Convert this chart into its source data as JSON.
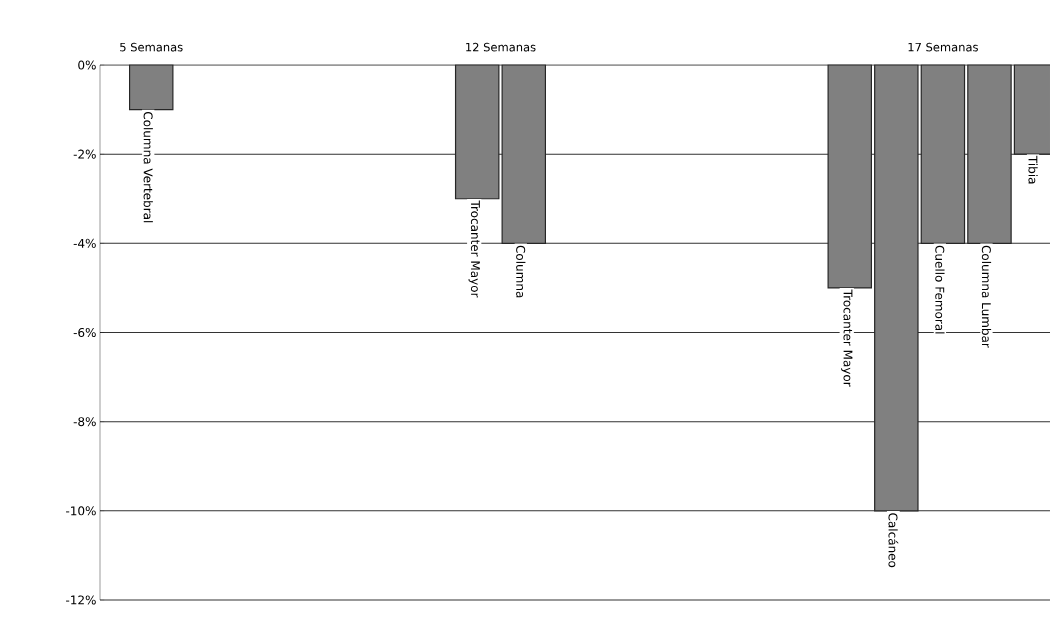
{
  "chart_data": {
    "type": "bar",
    "categories": [
      "Columna Vertebral",
      null,
      null,
      null,
      null,
      null,
      null,
      "Trocanter Mayor",
      "Columna",
      null,
      null,
      null,
      null,
      null,
      null,
      "Trocanter Mayor",
      "Calcáneo",
      "Cuello Femoral",
      "Columna Lumbar",
      "Tibia"
    ],
    "values": [
      -1,
      null,
      null,
      null,
      null,
      null,
      null,
      -3,
      -4,
      null,
      null,
      null,
      null,
      null,
      null,
      -5,
      -10,
      -4,
      -4,
      -2
    ],
    "color": "#808080",
    "ylim": [
      -12,
      0
    ],
    "yticks": [
      {
        "value": 0,
        "label": "0%"
      },
      {
        "value": -2,
        "label": "-2%"
      },
      {
        "value": -4,
        "label": "-4%"
      },
      {
        "value": -6,
        "label": "-6%"
      },
      {
        "value": -8,
        "label": "-8%"
      },
      {
        "value": -10,
        "label": "-10%"
      },
      {
        "value": -12,
        "label": "-12%"
      }
    ],
    "grid": "y",
    "annotations": [
      "5 Semanas",
      "12 Semanas",
      "17 Semanas"
    ]
  }
}
